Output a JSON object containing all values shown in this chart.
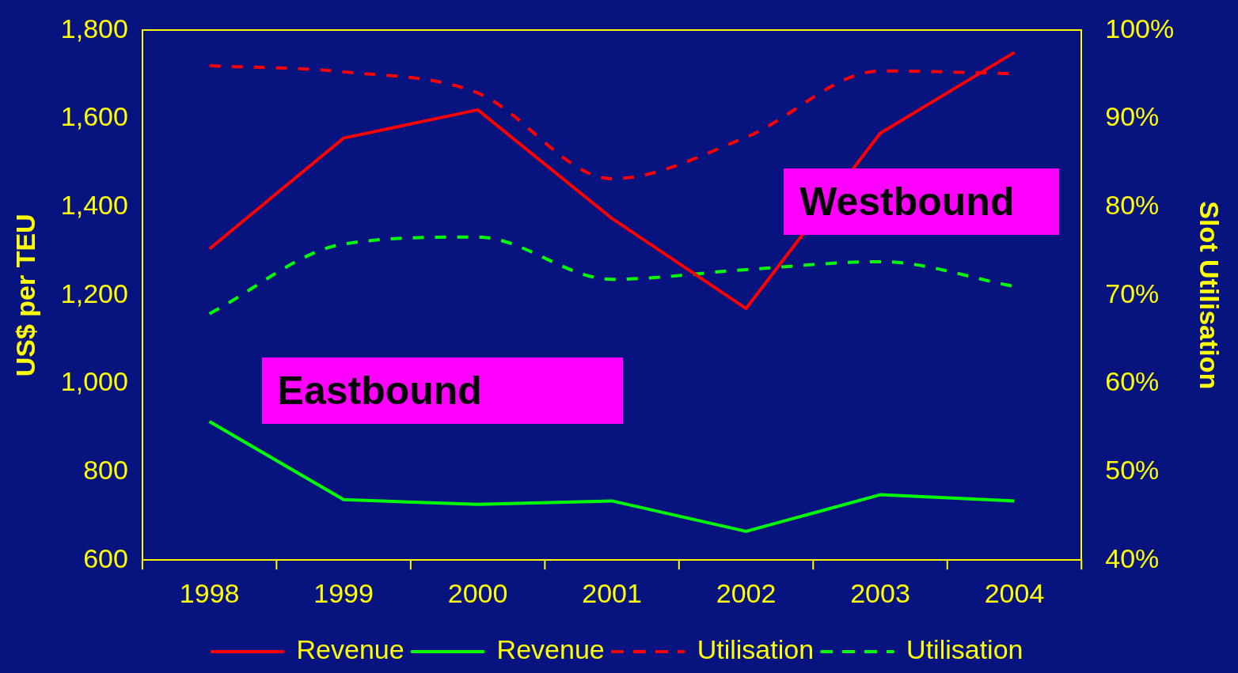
{
  "chart_data": {
    "type": "line",
    "xlabel": null,
    "ylabel": "US$ per TEU",
    "y2label": "Slot Utilisation",
    "categories": [
      "1998",
      "1999",
      "2000",
      "2001",
      "2002",
      "2003",
      "2004"
    ],
    "series": [
      {
        "name": "Revenue",
        "color": "#ff0000",
        "line_style": "solid",
        "values": [
          1305,
          1556,
          1620,
          1374,
          1170,
          1567,
          1750
        ]
      },
      {
        "name": "Revenue",
        "color": "#00ff00",
        "line_style": "solid",
        "values": [
          914,
          737,
          726,
          734,
          665,
          748,
          734
        ]
      },
      {
        "name": "Utilisation",
        "color": "#ff0000",
        "line_style": "dashed",
        "axis": "y2",
        "values": [
          96,
          95.3,
          92.9,
          83.2,
          87.9,
          95.4,
          95.1
        ]
      },
      {
        "name": "Utilisation",
        "color": "#00ff00",
        "line_style": "dashed",
        "axis": "y2",
        "values": [
          67.9,
          75.8,
          76.6,
          71.8,
          72.9,
          73.8,
          71.0
        ]
      }
    ],
    "ylim": [
      600,
      1800
    ],
    "yticks": [
      {
        "value": 600,
        "label": "600"
      },
      {
        "value": 800,
        "label": "800"
      },
      {
        "value": 1000,
        "label": "1,000"
      },
      {
        "value": 1200,
        "label": "1,200"
      },
      {
        "value": 1400,
        "label": "1,400"
      },
      {
        "value": 1600,
        "label": "1,600"
      },
      {
        "value": 1800,
        "label": "1,800"
      }
    ],
    "y2lim": [
      40,
      100
    ],
    "y2ticks": [
      {
        "value": 40,
        "label": "40%"
      },
      {
        "value": 50,
        "label": "50%"
      },
      {
        "value": 60,
        "label": "60%"
      },
      {
        "value": 70,
        "label": "70%"
      },
      {
        "value": 80,
        "label": "80%"
      },
      {
        "value": 90,
        "label": "90%"
      },
      {
        "value": 100,
        "label": "100%"
      }
    ],
    "annotations": [
      "Westbound",
      "Eastbound"
    ],
    "grid": false,
    "legend": "bottom",
    "marker": "none"
  }
}
